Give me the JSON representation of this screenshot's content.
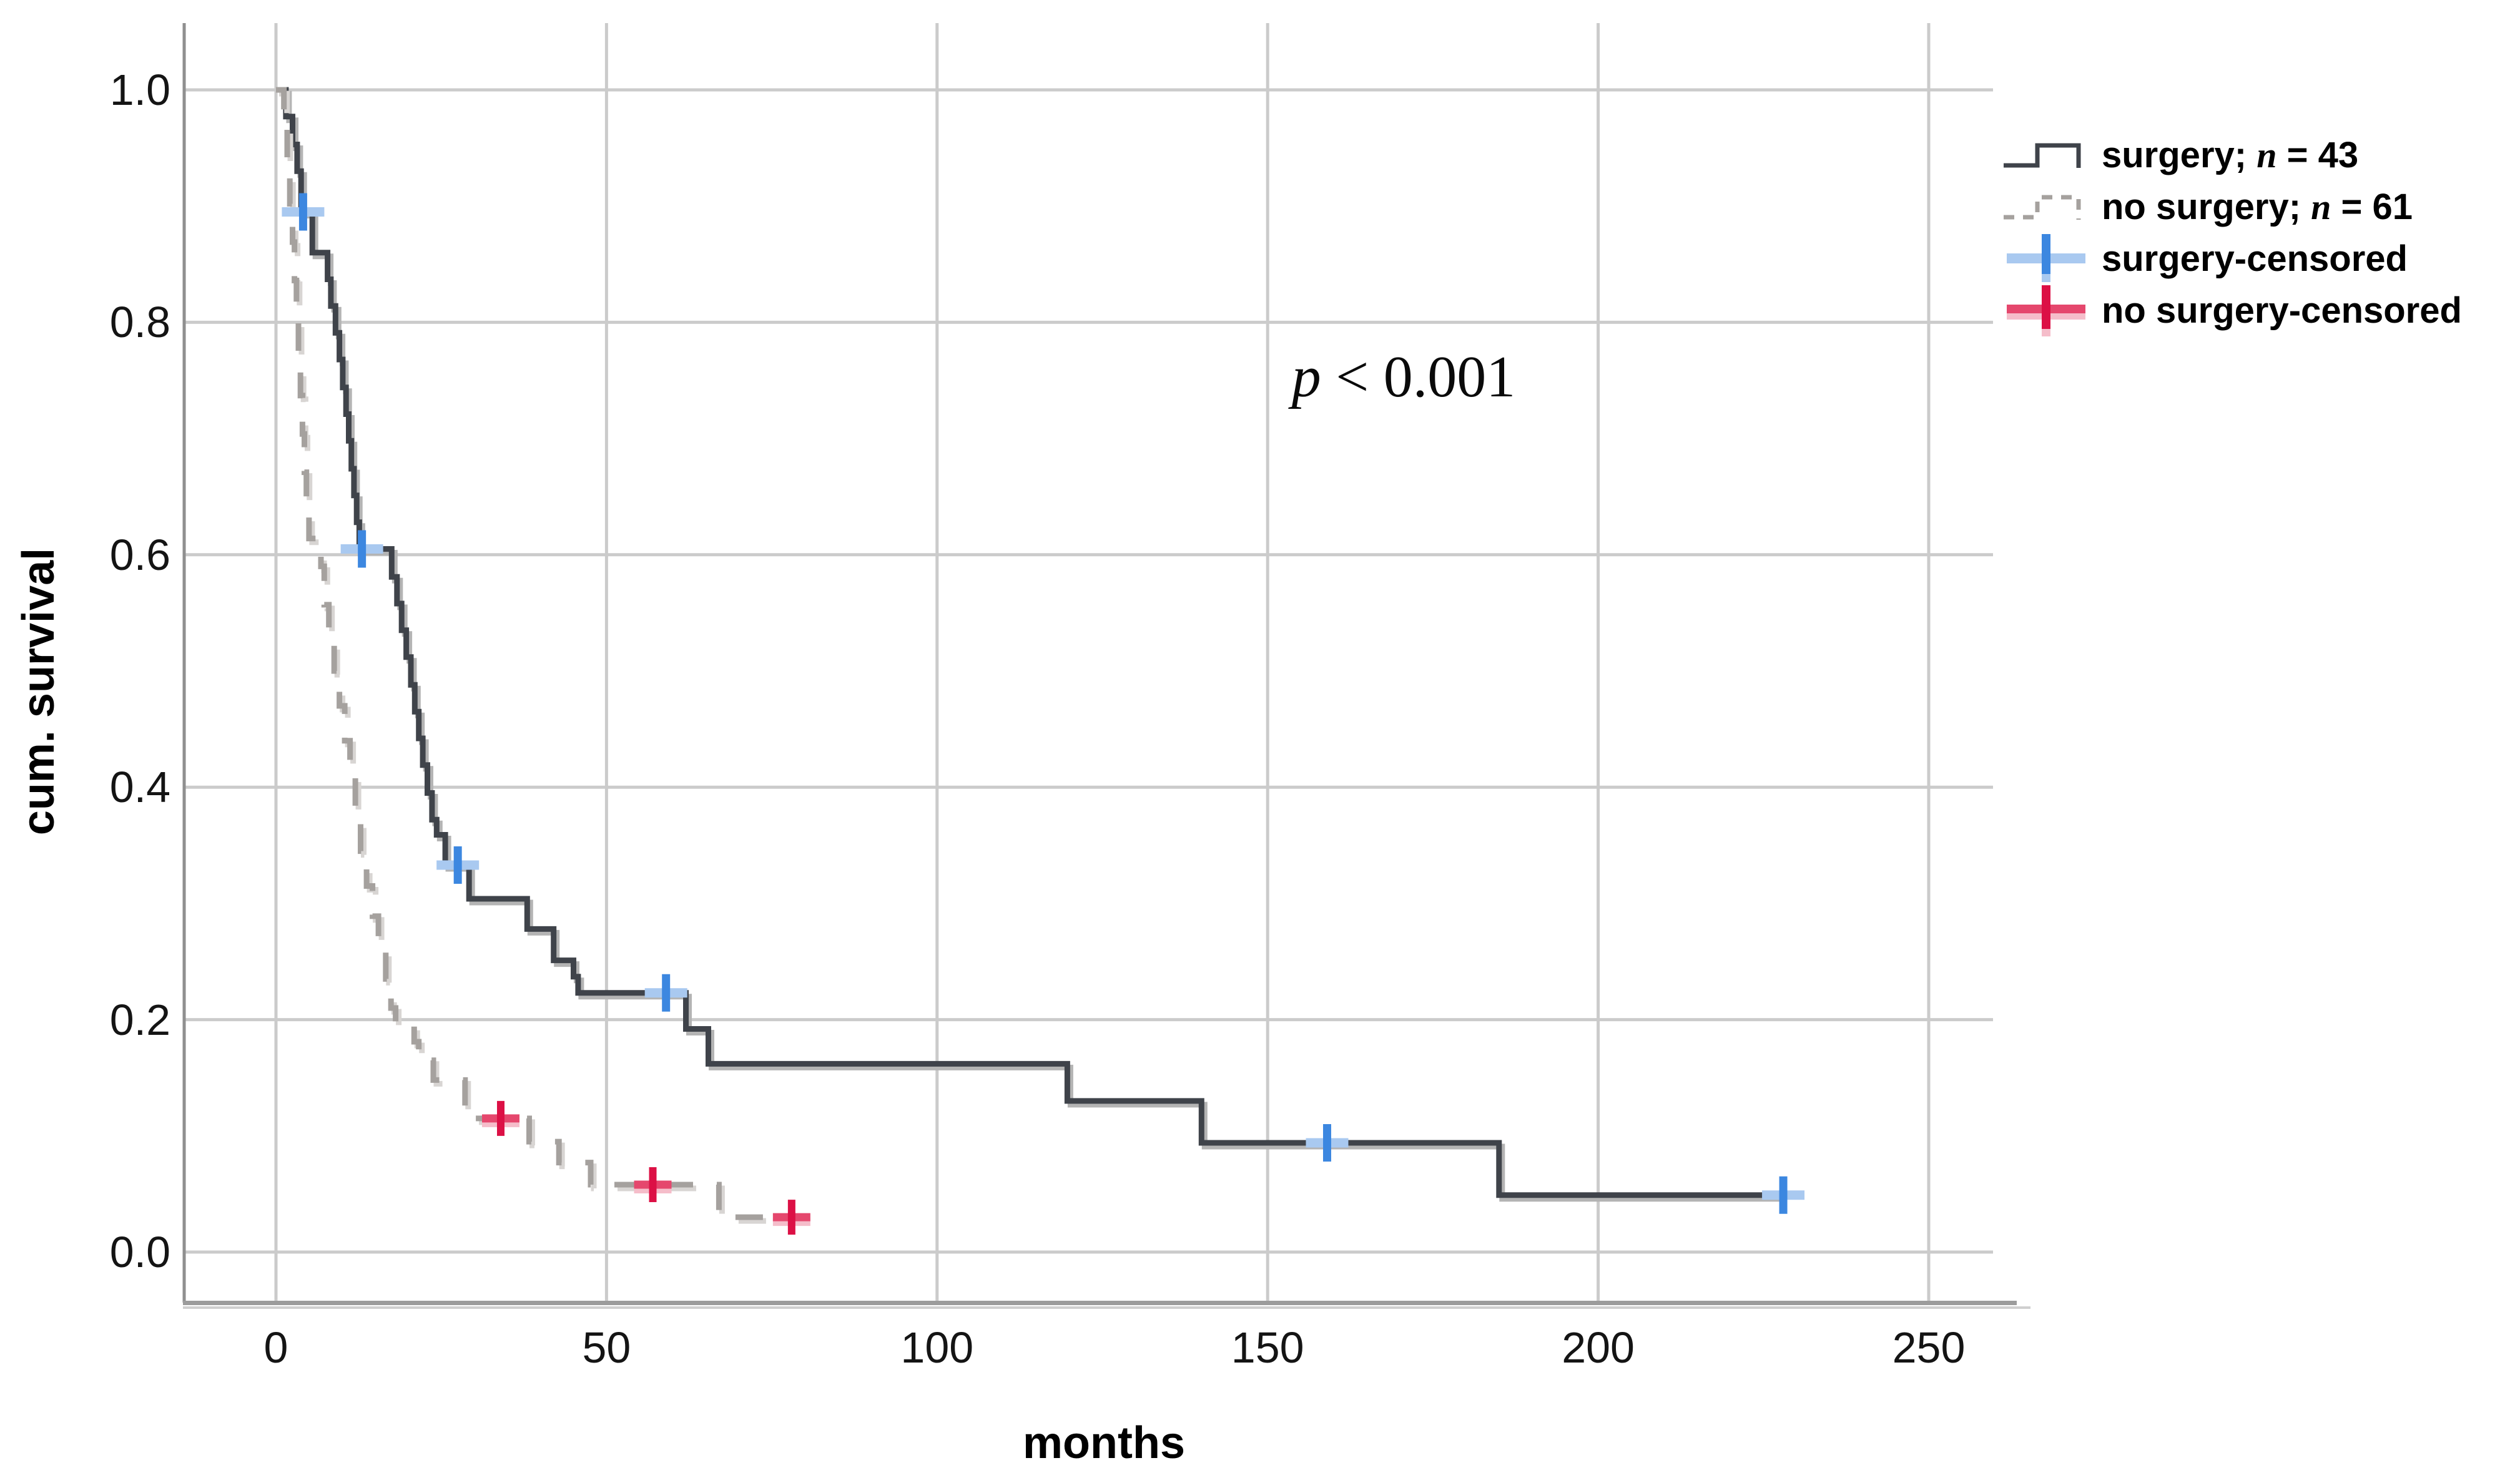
{
  "axes": {
    "x": {
      "label": "months",
      "tick_labels": [
        "0",
        "50",
        "100",
        "150",
        "200",
        "250"
      ]
    },
    "y": {
      "label": "cum. survival",
      "tick_labels": [
        "1.0",
        "0.8",
        "0.6",
        "0.4",
        "0.2",
        "0.0"
      ]
    }
  },
  "annotation": {
    "pvar": "p",
    "rest": " < 0.001"
  },
  "legend": {
    "items": [
      {
        "prefix": "surgery; ",
        "nvar": "n",
        "suffix": " = 43"
      },
      {
        "prefix": "no surgery; ",
        "nvar": "n",
        "suffix": " = 61"
      },
      {
        "prefix": "surgery-censored",
        "nvar": "",
        "suffix": ""
      },
      {
        "prefix": "no surgery-censored",
        "nvar": "",
        "suffix": ""
      }
    ]
  },
  "colors": {
    "surgery_line": "#3f434a",
    "surgery_halo": "#b4b4b4",
    "no_surgery_line": "#a5a19e",
    "no_surgery_halo": "#d8d5d3",
    "censor_blue": "#3c87e0",
    "censor_blue_light": "#a9c9f0",
    "censor_red": "#dc1045",
    "censor_red_mid": "#e5476d",
    "censor_red_light": "#f5bdca",
    "gridline": "#cbcbcb",
    "frame": "#8f8f8f",
    "frame_bottom": "#9c9c9c",
    "frame_bottom_light": "#cfcfcf"
  },
  "chart_data": {
    "type": "line",
    "subtype": "kaplan-meier-step",
    "title": "",
    "xlabel": "months",
    "ylabel": "cum. survival",
    "xlim": [
      -14,
      260
    ],
    "ylim": [
      -0.045,
      1.06
    ],
    "xticks": [
      0,
      50,
      100,
      150,
      200,
      250
    ],
    "yticks": [
      1.0,
      0.8,
      0.6,
      0.4,
      0.2,
      0.0
    ],
    "grid": true,
    "legend_position": "top-right",
    "annotation": {
      "text": "p < 0.001",
      "x": 170,
      "y": 0.75
    },
    "series": [
      {
        "name": "surgery; n = 43",
        "n": 43,
        "style": "solid",
        "steps": [
          [
            0,
            1.0
          ],
          [
            1.5,
            0.977
          ],
          [
            2.5,
            0.953
          ],
          [
            3.2,
            0.93
          ],
          [
            3.8,
            0.895
          ],
          [
            5.5,
            0.86
          ],
          [
            7.8,
            0.837
          ],
          [
            8.3,
            0.814
          ],
          [
            9.0,
            0.791
          ],
          [
            9.6,
            0.768
          ],
          [
            10.1,
            0.744
          ],
          [
            10.6,
            0.721
          ],
          [
            11.0,
            0.698
          ],
          [
            11.4,
            0.674
          ],
          [
            11.8,
            0.651
          ],
          [
            12.2,
            0.628
          ],
          [
            12.6,
            0.605
          ],
          [
            17.5,
            0.581
          ],
          [
            18.3,
            0.558
          ],
          [
            19.0,
            0.535
          ],
          [
            19.7,
            0.512
          ],
          [
            20.4,
            0.488
          ],
          [
            21.0,
            0.465
          ],
          [
            21.6,
            0.442
          ],
          [
            22.2,
            0.419
          ],
          [
            22.9,
            0.395
          ],
          [
            23.6,
            0.372
          ],
          [
            24.3,
            0.359
          ],
          [
            25.6,
            0.333
          ],
          [
            29.2,
            0.304
          ],
          [
            38.0,
            0.278
          ],
          [
            42.0,
            0.251
          ],
          [
            45.0,
            0.237
          ],
          [
            45.7,
            0.223
          ],
          [
            62.0,
            0.192
          ],
          [
            65.4,
            0.162
          ],
          [
            119.7,
            0.13
          ],
          [
            140.0,
            0.094
          ],
          [
            185.0,
            0.049
          ]
        ],
        "end_x": 228
      },
      {
        "name": "no surgery; n = 61",
        "n": 61,
        "style": "dashed",
        "steps": [
          [
            0,
            1.0
          ],
          [
            1.2,
            0.967
          ],
          [
            1.7,
            0.934
          ],
          [
            2.1,
            0.902
          ],
          [
            2.5,
            0.869
          ],
          [
            2.8,
            0.836
          ],
          [
            3.1,
            0.803
          ],
          [
            3.4,
            0.77
          ],
          [
            3.7,
            0.737
          ],
          [
            4.0,
            0.704
          ],
          [
            4.3,
            0.671
          ],
          [
            4.6,
            0.638
          ],
          [
            5.0,
            0.614
          ],
          [
            6.8,
            0.59
          ],
          [
            7.3,
            0.557
          ],
          [
            8.0,
            0.53
          ],
          [
            8.8,
            0.5
          ],
          [
            9.6,
            0.47
          ],
          [
            10.4,
            0.44
          ],
          [
            11.2,
            0.41
          ],
          [
            12.0,
            0.378
          ],
          [
            12.8,
            0.345
          ],
          [
            13.7,
            0.315
          ],
          [
            14.6,
            0.289
          ],
          [
            15.5,
            0.263
          ],
          [
            16.6,
            0.235
          ],
          [
            17.4,
            0.21
          ],
          [
            18.1,
            0.198
          ],
          [
            20.9,
            0.181
          ],
          [
            21.6,
            0.165
          ],
          [
            23.8,
            0.148
          ],
          [
            28.6,
            0.115
          ],
          [
            38.3,
            0.095
          ],
          [
            42.8,
            0.077
          ],
          [
            47.6,
            0.058
          ],
          [
            67.0,
            0.03
          ]
        ],
        "end_x": 79
      }
    ],
    "censored": [
      {
        "series": "surgery; n = 43",
        "marker": "plus-blue",
        "points": [
          [
            4.1,
            0.895
          ],
          [
            13.0,
            0.605
          ],
          [
            27.5,
            0.333
          ],
          [
            59.0,
            0.223
          ],
          [
            159.0,
            0.094
          ],
          [
            228.0,
            0.049
          ]
        ]
      },
      {
        "series": "no surgery; n = 61",
        "marker": "plus-red",
        "points": [
          [
            34.0,
            0.115
          ],
          [
            57.0,
            0.058
          ],
          [
            78.0,
            0.03
          ]
        ]
      }
    ]
  }
}
